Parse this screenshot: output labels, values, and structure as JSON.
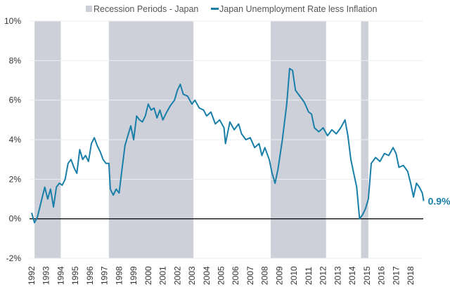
{
  "chart_data": {
    "type": "line",
    "title": "",
    "xlabel": "",
    "ylabel": "",
    "xlim": [
      1992.0,
      2019.0
    ],
    "ylim": [
      -2,
      10
    ],
    "y_ticks": [
      -2,
      0,
      2,
      4,
      6,
      8,
      10
    ],
    "y_tick_labels": [
      "-2%",
      "0%",
      "2%",
      "4%",
      "6%",
      "8%",
      "10%"
    ],
    "x_tick_labels": [
      "1992",
      "1993",
      "1994",
      "1995",
      "1996",
      "1997",
      "1998",
      "1999",
      "2000",
      "2001",
      "2002",
      "2003",
      "2004",
      "2005",
      "2006",
      "2007",
      "2008",
      "2009",
      "2010",
      "2011",
      "2012",
      "2013",
      "2014",
      "2015",
      "2016",
      "2017",
      "2018"
    ],
    "legend": {
      "placement": "top",
      "entries": [
        {
          "label": "Recession Periods - Japan",
          "color": "#cdd0d9"
        },
        {
          "label": "Japan Unemployment Rate less Inflation",
          "color": "#1a7fa8"
        }
      ]
    },
    "recessions": [
      [
        1992.2,
        1994.0
      ],
      [
        1997.3,
        2003.1
      ],
      [
        2008.4,
        2012.2
      ],
      [
        2014.6,
        2015.1
      ]
    ],
    "end_label": "0.9%",
    "series": [
      {
        "name": "Japan Unemployment Rate less Inflation",
        "color": "#1a7fa8",
        "x": [
          1992.0,
          1992.2,
          1992.4,
          1992.7,
          1992.9,
          1993.1,
          1993.3,
          1993.5,
          1993.7,
          1993.9,
          1994.1,
          1994.3,
          1994.5,
          1994.7,
          1994.9,
          1995.1,
          1995.3,
          1995.5,
          1995.7,
          1995.9,
          1996.1,
          1996.3,
          1996.5,
          1996.7,
          1996.9,
          1997.1,
          1997.3,
          1997.4,
          1997.6,
          1997.8,
          1998.0,
          1998.2,
          1998.4,
          1998.6,
          1998.8,
          1999.0,
          1999.2,
          1999.4,
          1999.6,
          1999.8,
          2000.0,
          2000.2,
          2000.4,
          2000.6,
          2000.8,
          2001.0,
          2001.2,
          2001.5,
          2001.8,
          2002.0,
          2002.2,
          2002.4,
          2002.7,
          2003.0,
          2003.2,
          2003.5,
          2003.8,
          2004.0,
          2004.3,
          2004.6,
          2004.9,
          2005.2,
          2005.3,
          2005.6,
          2005.9,
          2006.2,
          2006.4,
          2006.7,
          2007.0,
          2007.3,
          2007.6,
          2007.8,
          2008.0,
          2008.3,
          2008.5,
          2008.7,
          2008.9,
          2009.2,
          2009.5,
          2009.7,
          2009.9,
          2010.1,
          2010.4,
          2010.7,
          2011.0,
          2011.2,
          2011.4,
          2011.7,
          2012.0,
          2012.3,
          2012.6,
          2012.9,
          2013.2,
          2013.5,
          2013.7,
          2013.9,
          2014.1,
          2014.3,
          2014.5,
          2014.7,
          2014.9,
          2015.1,
          2015.3,
          2015.6,
          2015.9,
          2016.2,
          2016.5,
          2016.8,
          2017.0,
          2017.2,
          2017.5,
          2017.8,
          2018.0,
          2018.2,
          2018.4,
          2018.6,
          2018.8,
          2018.9
        ],
        "values": [
          0.3,
          -0.2,
          0.1,
          1.0,
          1.6,
          1.0,
          1.5,
          0.6,
          1.6,
          1.8,
          1.7,
          2.0,
          2.8,
          3.0,
          2.6,
          2.3,
          3.5,
          3.0,
          3.2,
          2.9,
          3.8,
          4.1,
          3.7,
          3.4,
          3.0,
          2.8,
          2.8,
          1.5,
          1.2,
          1.5,
          1.3,
          2.5,
          3.7,
          4.2,
          4.7,
          4.0,
          5.2,
          5.0,
          4.9,
          5.2,
          5.8,
          5.5,
          5.6,
          5.1,
          5.5,
          5.0,
          5.3,
          5.7,
          6.0,
          6.5,
          6.8,
          6.3,
          6.2,
          5.8,
          6.0,
          5.6,
          5.5,
          5.2,
          5.4,
          4.8,
          5.0,
          4.6,
          3.8,
          4.9,
          4.5,
          4.8,
          4.3,
          4.0,
          4.1,
          3.6,
          3.8,
          3.2,
          3.6,
          3.0,
          2.3,
          1.8,
          2.5,
          4.0,
          5.8,
          7.6,
          7.5,
          6.5,
          6.2,
          5.9,
          5.4,
          5.3,
          4.6,
          4.4,
          4.6,
          4.2,
          4.5,
          4.3,
          4.6,
          5.0,
          4.2,
          3.0,
          2.3,
          1.6,
          0.0,
          0.2,
          0.5,
          1.0,
          2.8,
          3.1,
          2.9,
          3.3,
          3.2,
          3.6,
          3.3,
          2.6,
          2.7,
          2.4,
          1.8,
          1.1,
          1.8,
          1.6,
          1.3,
          0.9
        ]
      }
    ]
  }
}
